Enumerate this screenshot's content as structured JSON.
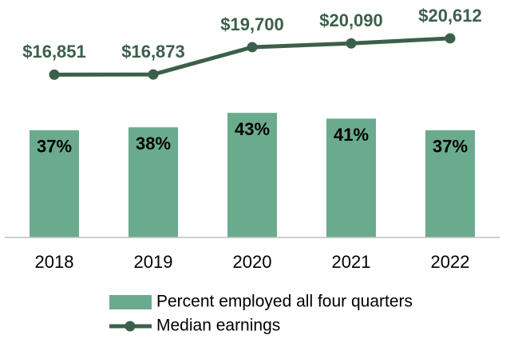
{
  "chart_data": {
    "type": "bar",
    "categories": [
      "2018",
      "2019",
      "2020",
      "2021",
      "2022"
    ],
    "series": [
      {
        "name": "Percent employed all four quarters",
        "type": "bar",
        "color": "#6aab8e",
        "values": [
          37,
          38,
          43,
          41,
          37
        ],
        "value_labels": [
          "37%",
          "38%",
          "43%",
          "41%",
          "37%"
        ]
      },
      {
        "name": "Median earnings",
        "type": "line",
        "axis": "y2",
        "color": "#3c5f4b",
        "values": [
          16851,
          16873,
          19700,
          20090,
          20612
        ],
        "value_labels": [
          "$16,851",
          "$16,873",
          "$19,700",
          "$20,090",
          "$20,612"
        ]
      }
    ],
    "ylim": [
      0,
      80
    ],
    "y2lim": [
      0,
      24000
    ],
    "grid": false,
    "legend": "bottom"
  }
}
